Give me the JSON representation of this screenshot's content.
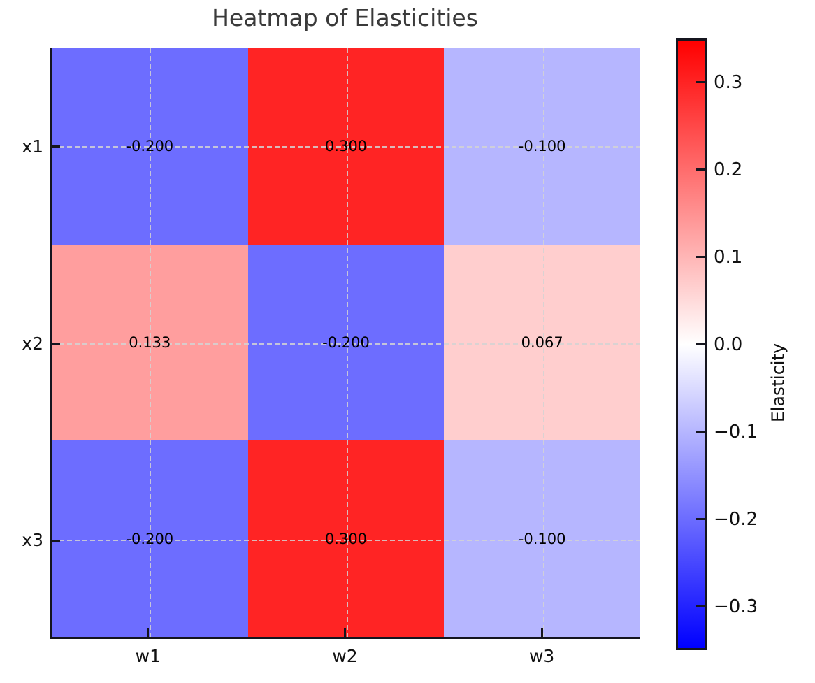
{
  "chart_data": {
    "type": "heatmap",
    "title": "Heatmap of Elasticities",
    "rows": [
      "x1",
      "x2",
      "x3"
    ],
    "cols": [
      "w1",
      "w2",
      "w3"
    ],
    "values": [
      [
        -0.2,
        0.3,
        -0.1
      ],
      [
        0.133,
        -0.2,
        0.067
      ],
      [
        -0.2,
        0.3,
        -0.1
      ]
    ],
    "cell_labels": [
      [
        "-0.200",
        "0.300",
        "-0.100"
      ],
      [
        "0.133",
        "-0.200",
        "0.067"
      ],
      [
        "-0.200",
        "0.300",
        "-0.100"
      ]
    ],
    "cell_colors": [
      [
        "#6D6DFF",
        "#FF2424",
        "#B6B6FF"
      ],
      [
        "#FF9E9E",
        "#6D6DFF",
        "#FFCECE"
      ],
      [
        "#6D6DFF",
        "#FF2424",
        "#B6B6FF"
      ]
    ],
    "colormap": "bwr",
    "grid": "dashed, at cell centers",
    "legend_position": "right colorbar",
    "colorbar": {
      "label": "Elasticity",
      "vmin": -0.35,
      "vmax": 0.35,
      "tick_values": [
        0.3,
        0.2,
        0.1,
        0.0,
        -0.1,
        -0.2,
        -0.3
      ],
      "tick_labels": [
        "0.3",
        "0.2",
        "0.1",
        "0.0",
        "−0.1",
        "−0.2",
        "−0.3"
      ],
      "top_color": "#FF0000",
      "mid_color": "#FFFFFF",
      "bottom_color": "#0000FF"
    },
    "spine_color": "#15151f",
    "title_color": "#3a3a3a"
  }
}
